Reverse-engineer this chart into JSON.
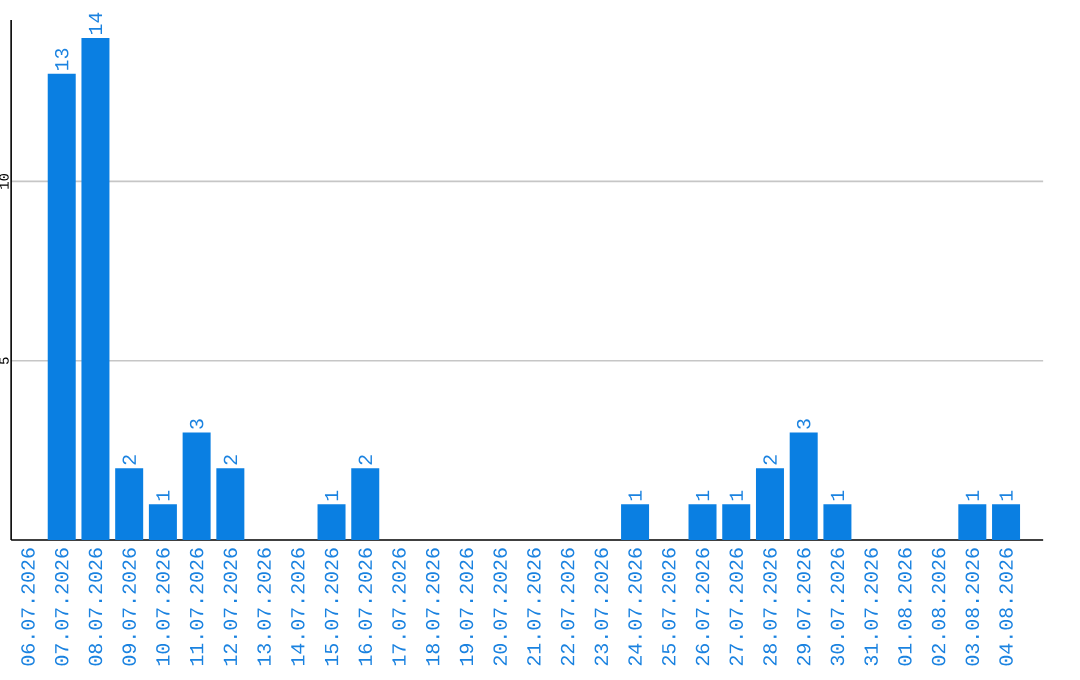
{
  "chart_data": {
    "type": "bar",
    "categories": [
      "06.07.2026",
      "07.07.2026",
      "08.07.2026",
      "09.07.2026",
      "10.07.2026",
      "11.07.2026",
      "12.07.2026",
      "13.07.2026",
      "14.07.2026",
      "15.07.2026",
      "16.07.2026",
      "17.07.2026",
      "18.07.2026",
      "19.07.2026",
      "20.07.2026",
      "21.07.2026",
      "22.07.2026",
      "23.07.2026",
      "24.07.2026",
      "25.07.2026",
      "26.07.2026",
      "27.07.2026",
      "28.07.2026",
      "29.07.2026",
      "30.07.2026",
      "31.07.2026",
      "01.08.2026",
      "02.08.2026",
      "03.08.2026",
      "04.08.2026"
    ],
    "values": [
      0,
      13,
      14,
      2,
      1,
      3,
      2,
      0,
      0,
      1,
      2,
      0,
      0,
      0,
      0,
      0,
      0,
      0,
      1,
      0,
      1,
      1,
      2,
      3,
      1,
      0,
      0,
      0,
      1,
      1
    ],
    "value_labels": [
      null,
      "13",
      "14",
      "2",
      "1",
      "3",
      "2",
      null,
      null,
      "1",
      "2",
      null,
      null,
      null,
      null,
      null,
      null,
      null,
      "1",
      null,
      "1",
      "1",
      "2",
      "3",
      "1",
      null,
      null,
      null,
      "1",
      "1"
    ],
    "color": "#0a7fe2",
    "ylim": [
      0,
      14.5
    ],
    "yticks": [
      5,
      10
    ],
    "grid": "y"
  }
}
